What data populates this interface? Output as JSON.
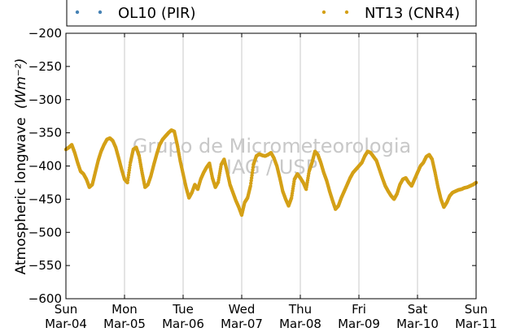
{
  "chart_data": {
    "type": "scatter",
    "ylabel": "Atmospheric longwave",
    "ylabel_unit": "(Wm⁻²)",
    "ylim": [
      -600,
      -200
    ],
    "yticks": [
      -600,
      -550,
      -500,
      -450,
      -400,
      -350,
      -300,
      -250,
      -200
    ],
    "ytick_labels": [
      "−600",
      "−550",
      "−500",
      "−450",
      "−400",
      "−350",
      "−300",
      "−250",
      "−200"
    ],
    "xlim": [
      0,
      7
    ],
    "xticks": [
      {
        "day": "Sun",
        "date": "Mar-04",
        "x": 0
      },
      {
        "day": "Mon",
        "date": "Mar-05",
        "x": 1
      },
      {
        "day": "Tue",
        "date": "Mar-06",
        "x": 2
      },
      {
        "day": "Wed",
        "date": "Mar-07",
        "x": 3
      },
      {
        "day": "Thu",
        "date": "Mar-08",
        "x": 4
      },
      {
        "day": "Fri",
        "date": "Mar-09",
        "x": 5
      },
      {
        "day": "Sat",
        "date": "Mar-10",
        "x": 6
      },
      {
        "day": "Sun",
        "date": "Mar-11",
        "x": 7
      }
    ],
    "grid": "vertical",
    "legend_placement": "top",
    "watermark": [
      "Grupo de Micrometeorologia",
      "IAG / USP"
    ],
    "series": [
      {
        "name": "OL10 (PIR)",
        "color": "#4682b4",
        "x": [],
        "y": []
      },
      {
        "name": "NT13 (CNR4)",
        "color": "#d4a017",
        "x": [
          0.0,
          0.05,
          0.1,
          0.15,
          0.2,
          0.25,
          0.3,
          0.35,
          0.4,
          0.45,
          0.5,
          0.55,
          0.6,
          0.65,
          0.7,
          0.75,
          0.8,
          0.85,
          0.9,
          0.95,
          1.0,
          1.05,
          1.1,
          1.15,
          1.2,
          1.25,
          1.3,
          1.35,
          1.4,
          1.45,
          1.5,
          1.55,
          1.6,
          1.65,
          1.7,
          1.75,
          1.8,
          1.85,
          1.9,
          1.95,
          2.0,
          2.05,
          2.1,
          2.15,
          2.2,
          2.25,
          2.3,
          2.35,
          2.4,
          2.45,
          2.5,
          2.55,
          2.6,
          2.65,
          2.7,
          2.75,
          2.8,
          2.85,
          2.9,
          2.95,
          3.0,
          3.05,
          3.1,
          3.15,
          3.2,
          3.25,
          3.3,
          3.35,
          3.4,
          3.45,
          3.5,
          3.55,
          3.6,
          3.65,
          3.7,
          3.75,
          3.8,
          3.85,
          3.9,
          3.95,
          4.0,
          4.05,
          4.1,
          4.15,
          4.2,
          4.25,
          4.3,
          4.35,
          4.4,
          4.45,
          4.5,
          4.55,
          4.6,
          4.65,
          4.7,
          4.75,
          4.8,
          4.85,
          4.9,
          4.95,
          5.0,
          5.05,
          5.1,
          5.15,
          5.2,
          5.25,
          5.3,
          5.35,
          5.4,
          5.45,
          5.5,
          5.55,
          5.6,
          5.65,
          5.7,
          5.75,
          5.8,
          5.85,
          5.9,
          5.95,
          6.0,
          6.05,
          6.1,
          6.15,
          6.2,
          6.25,
          6.3,
          6.35,
          6.4,
          6.45,
          6.5,
          6.55,
          6.6,
          6.65,
          6.7,
          6.75,
          6.8,
          6.85,
          6.9,
          6.95,
          7.0
        ],
        "y": [
          -375,
          -372,
          -368,
          -380,
          -395,
          -408,
          -412,
          -420,
          -432,
          -428,
          -410,
          -392,
          -378,
          -368,
          -360,
          -358,
          -362,
          -372,
          -388,
          -405,
          -420,
          -425,
          -395,
          -375,
          -372,
          -385,
          -410,
          -432,
          -428,
          -415,
          -398,
          -382,
          -368,
          -360,
          -355,
          -350,
          -346,
          -348,
          -368,
          -392,
          -412,
          -432,
          -448,
          -440,
          -428,
          -435,
          -420,
          -410,
          -402,
          -396,
          -418,
          -432,
          -424,
          -398,
          -390,
          -408,
          -428,
          -440,
          -452,
          -462,
          -474,
          -455,
          -448,
          -430,
          -398,
          -385,
          -382,
          -384,
          -385,
          -383,
          -380,
          -388,
          -400,
          -418,
          -438,
          -450,
          -460,
          -448,
          -420,
          -412,
          -418,
          -425,
          -435,
          -408,
          -395,
          -378,
          -383,
          -395,
          -410,
          -422,
          -438,
          -452,
          -465,
          -460,
          -448,
          -438,
          -428,
          -418,
          -410,
          -405,
          -400,
          -395,
          -385,
          -378,
          -380,
          -386,
          -392,
          -405,
          -418,
          -430,
          -438,
          -445,
          -450,
          -442,
          -428,
          -420,
          -418,
          -425,
          -430,
          -420,
          -410,
          -400,
          -395,
          -386,
          -383,
          -390,
          -410,
          -432,
          -450,
          -462,
          -455,
          -445,
          -440,
          -438,
          -436,
          -435,
          -433,
          -432,
          -430,
          -428,
          -425
        ]
      }
    ]
  }
}
